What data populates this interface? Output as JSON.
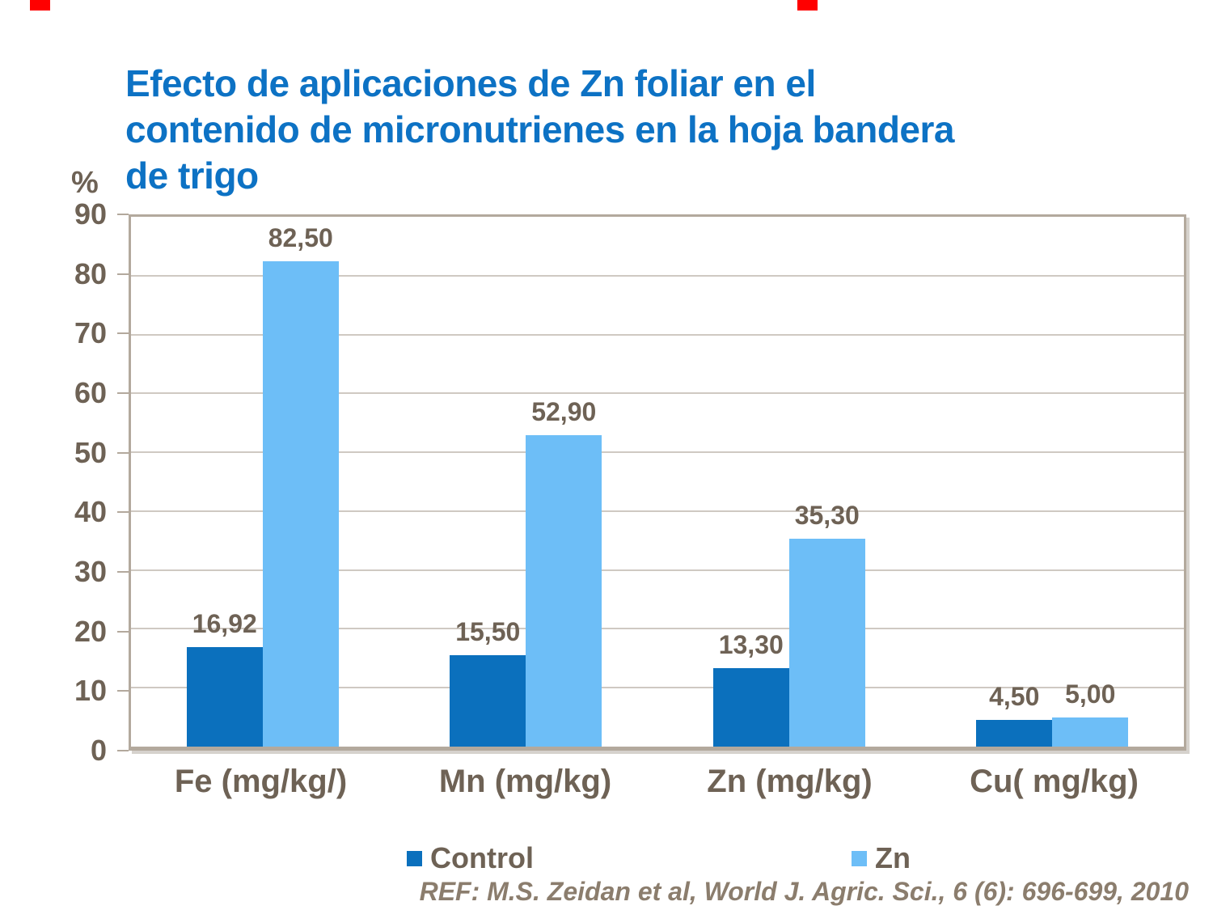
{
  "slide": {
    "title": "Efecto de aplicaciones de Zn foliar en el\ncontenido de micronutrienes en la hoja bandera\nde trigo",
    "reference": "REF: M.S. Zeidan et al, World J. Agric. Sci., 6 (6): 696-699, 2010"
  },
  "colors": {
    "title": "#0d72c4",
    "text": "#6e6255",
    "reference": "#8b7d6d",
    "frame": "#b3a99d",
    "gridline": "#cfc9c2",
    "control_series": "#0b70bd",
    "zn_series": "#6dbef7",
    "corner_marks": "#ff0000",
    "background": "#ffffff"
  },
  "chart_data": {
    "type": "bar",
    "title": "Efecto de aplicaciones de Zn foliar en el contenido de micronutrienes en la hoja bandera de trigo",
    "ylabel": "%",
    "xlabel": "",
    "ylim": [
      0,
      90
    ],
    "yticks": [
      90,
      80,
      70,
      60,
      50,
      40,
      30,
      20,
      10,
      0
    ],
    "grid": true,
    "legend_position": "bottom",
    "decimal_separator": ",",
    "categories": [
      "Fe (mg/kg/)",
      "Mn (mg/kg)",
      "Zn (mg/kg)",
      "Cu( mg/kg)"
    ],
    "series": [
      {
        "name": "Control",
        "color": "#0b70bd",
        "values": [
          16.92,
          15.5,
          13.3,
          4.5
        ],
        "labels": [
          "16,92",
          "15,50",
          "13,30",
          "4,50"
        ]
      },
      {
        "name": "Zn",
        "color": "#6dbef7",
        "values": [
          82.5,
          52.9,
          35.3,
          5.0
        ],
        "labels": [
          "82,50",
          "52,90",
          "35,30",
          "5,00"
        ]
      }
    ]
  }
}
